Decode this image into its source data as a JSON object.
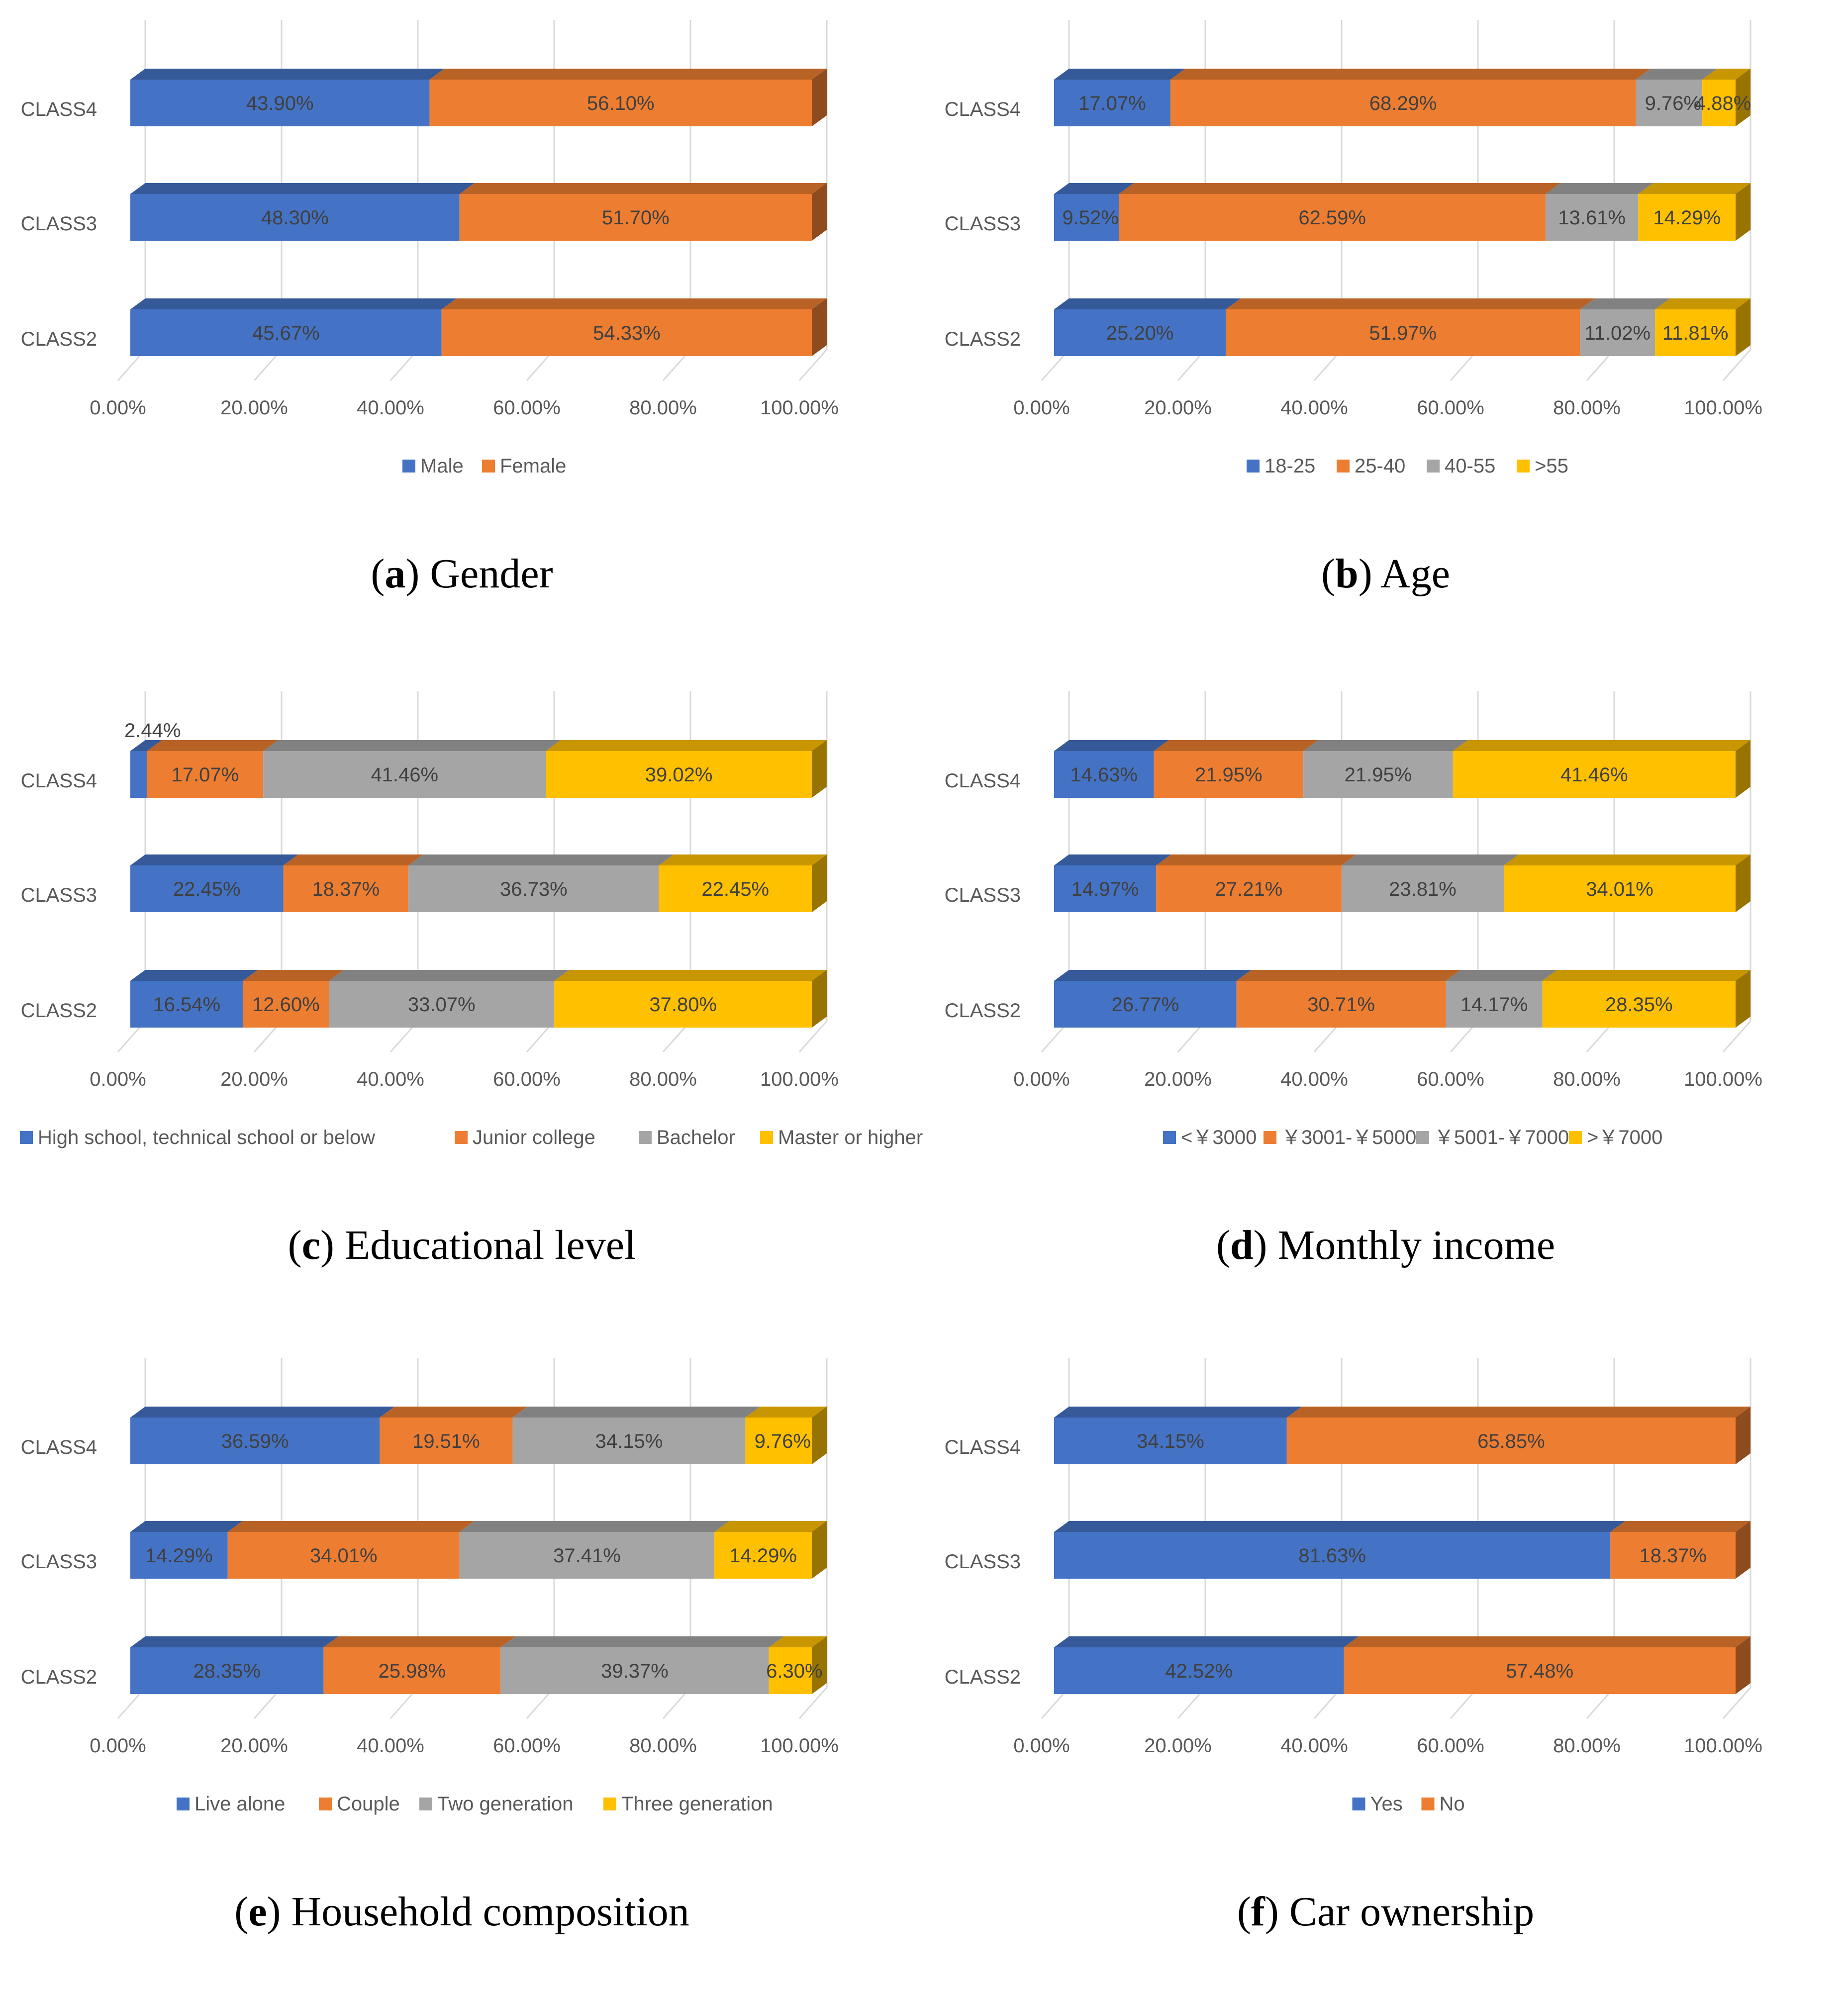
{
  "chart_data": [
    {
      "panel": "a",
      "type": "bar",
      "orientation": "horizontal",
      "stacked": true,
      "percent": true,
      "caption_letter": "a",
      "caption_text": "Gender",
      "categories": [
        "CLASS4",
        "CLASS3",
        "CLASS2"
      ],
      "xlim": [
        0,
        100
      ],
      "xticks": [
        "0.00%",
        "20.00%",
        "40.00%",
        "60.00%",
        "80.00%",
        "100.00%"
      ],
      "legend_position": "bottom",
      "series": [
        {
          "name": "Male",
          "color": "#4472C4",
          "values": [
            43.9,
            48.3,
            45.67
          ],
          "labels": [
            "43.90%",
            "48.30%",
            "45.67%"
          ]
        },
        {
          "name": "Female",
          "color": "#ED7D31",
          "values": [
            56.1,
            51.7,
            54.33
          ],
          "labels": [
            "56.10%",
            "51.70%",
            "54.33%"
          ]
        }
      ]
    },
    {
      "panel": "b",
      "type": "bar",
      "orientation": "horizontal",
      "stacked": true,
      "percent": true,
      "caption_letter": "b",
      "caption_text": "Age",
      "categories": [
        "CLASS4",
        "CLASS3",
        "CLASS2"
      ],
      "xlim": [
        0,
        100
      ],
      "xticks": [
        "0.00%",
        "20.00%",
        "40.00%",
        "60.00%",
        "80.00%",
        "100.00%"
      ],
      "legend_position": "bottom",
      "series": [
        {
          "name": "18-25",
          "color": "#4472C4",
          "values": [
            17.07,
            9.52,
            25.2
          ],
          "labels": [
            "17.07%",
            "9.52%",
            "25.20%"
          ]
        },
        {
          "name": "25-40",
          "color": "#ED7D31",
          "values": [
            68.29,
            62.59,
            51.97
          ],
          "labels": [
            "68.29%",
            "62.59%",
            "51.97%"
          ]
        },
        {
          "name": "40-55",
          "color": "#A5A5A5",
          "values": [
            9.76,
            13.61,
            11.02
          ],
          "labels": [
            "9.76%",
            "13.61%",
            "11.02%"
          ]
        },
        {
          "name": ">55",
          "color": "#FFC000",
          "values": [
            4.88,
            14.29,
            11.81
          ],
          "labels": [
            "4.88%",
            "14.29%",
            "11.81%"
          ]
        }
      ]
    },
    {
      "panel": "c",
      "type": "bar",
      "orientation": "horizontal",
      "stacked": true,
      "percent": true,
      "caption_letter": "c",
      "caption_text": "Educational level",
      "categories": [
        "CLASS4",
        "CLASS3",
        "CLASS2"
      ],
      "xlim": [
        0,
        100
      ],
      "xticks": [
        "0.00%",
        "20.00%",
        "40.00%",
        "60.00%",
        "80.00%",
        "100.00%"
      ],
      "legend_position": "bottom",
      "series": [
        {
          "name": "High school, technical school or below",
          "color": "#4472C4",
          "values": [
            2.44,
            22.45,
            16.54
          ],
          "labels": [
            "2.44%",
            "22.45%",
            "16.54%"
          ]
        },
        {
          "name": "Junior college",
          "color": "#ED7D31",
          "values": [
            17.07,
            18.37,
            12.6
          ],
          "labels": [
            "17.07%",
            "18.37%",
            "12.60%"
          ]
        },
        {
          "name": "Bachelor",
          "color": "#A5A5A5",
          "values": [
            41.46,
            36.73,
            33.07
          ],
          "labels": [
            "41.46%",
            "36.73%",
            "33.07%"
          ]
        },
        {
          "name": "Master or higher",
          "color": "#FFC000",
          "values": [
            39.02,
            22.45,
            37.8
          ],
          "labels": [
            "39.02%",
            "22.45%",
            "37.80%"
          ]
        }
      ]
    },
    {
      "panel": "d",
      "type": "bar",
      "orientation": "horizontal",
      "stacked": true,
      "percent": true,
      "caption_letter": "d",
      "caption_text": "Monthly income",
      "categories": [
        "CLASS4",
        "CLASS3",
        "CLASS2"
      ],
      "xlim": [
        0,
        100
      ],
      "xticks": [
        "0.00%",
        "20.00%",
        "40.00%",
        "60.00%",
        "80.00%",
        "100.00%"
      ],
      "legend_position": "bottom",
      "series": [
        {
          "name": "<￥3000",
          "color": "#4472C4",
          "values": [
            14.63,
            14.97,
            26.77
          ],
          "labels": [
            "14.63%",
            "14.97%",
            "26.77%"
          ]
        },
        {
          "name": "￥3001-￥5000",
          "color": "#ED7D31",
          "values": [
            21.95,
            27.21,
            30.71
          ],
          "labels": [
            "21.95%",
            "27.21%",
            "30.71%"
          ]
        },
        {
          "name": "￥5001-￥7000",
          "color": "#A5A5A5",
          "values": [
            21.95,
            23.81,
            14.17
          ],
          "labels": [
            "21.95%",
            "23.81%",
            "14.17%"
          ]
        },
        {
          "name": ">￥7000",
          "color": "#FFC000",
          "values": [
            41.46,
            34.01,
            28.35
          ],
          "labels": [
            "41.46%",
            "34.01%",
            "28.35%"
          ]
        }
      ]
    },
    {
      "panel": "e",
      "type": "bar",
      "orientation": "horizontal",
      "stacked": true,
      "percent": true,
      "caption_letter": "e",
      "caption_text": "Household composition",
      "categories": [
        "CLASS4",
        "CLASS3",
        "CLASS2"
      ],
      "xlim": [
        0,
        100
      ],
      "xticks": [
        "0.00%",
        "20.00%",
        "40.00%",
        "60.00%",
        "80.00%",
        "100.00%"
      ],
      "legend_position": "bottom",
      "series": [
        {
          "name": "Live alone",
          "color": "#4472C4",
          "values": [
            36.59,
            14.29,
            28.35
          ],
          "labels": [
            "36.59%",
            "14.29%",
            "28.35%"
          ]
        },
        {
          "name": "Couple",
          "color": "#ED7D31",
          "values": [
            19.51,
            34.01,
            25.98
          ],
          "labels": [
            "19.51%",
            "34.01%",
            "25.98%"
          ]
        },
        {
          "name": "Two generation",
          "color": "#A5A5A5",
          "values": [
            34.15,
            37.41,
            39.37
          ],
          "labels": [
            "34.15%",
            "37.41%",
            "39.37%"
          ]
        },
        {
          "name": "Three generation",
          "color": "#FFC000",
          "values": [
            9.76,
            14.29,
            6.3
          ],
          "labels": [
            "9.76%",
            "14.29%",
            "6.30%"
          ]
        }
      ]
    },
    {
      "panel": "f",
      "type": "bar",
      "orientation": "horizontal",
      "stacked": true,
      "percent": true,
      "caption_letter": "f",
      "caption_text": "Car ownership",
      "categories": [
        "CLASS4",
        "CLASS3",
        "CLASS2"
      ],
      "xlim": [
        0,
        100
      ],
      "xticks": [
        "0.00%",
        "20.00%",
        "40.00%",
        "60.00%",
        "80.00%",
        "100.00%"
      ],
      "legend_position": "bottom",
      "series": [
        {
          "name": "Yes",
          "color": "#4472C4",
          "values": [
            34.15,
            81.63,
            42.52
          ],
          "labels": [
            "34.15%",
            "81.63%",
            "42.52%"
          ]
        },
        {
          "name": "No",
          "color": "#ED7D31",
          "values": [
            65.85,
            18.37,
            57.48
          ],
          "labels": [
            "65.85%",
            "18.37%",
            "57.48%"
          ]
        }
      ]
    }
  ]
}
